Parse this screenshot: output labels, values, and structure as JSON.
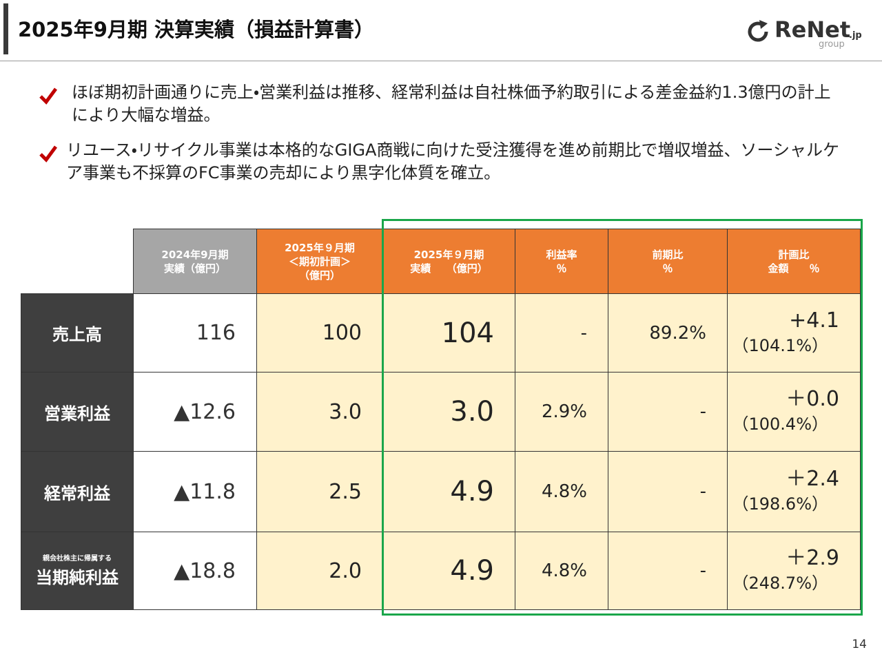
{
  "header": {
    "title": "2025年9月期 決算実績（損益計算書）",
    "logo": {
      "name": "ReNet",
      "suffix": ".jp",
      "tagline": "group"
    }
  },
  "bullets": [
    "ほぼ期初計画通りに売上・営業利益は推移、経常利益は自社株価予約取引による差金益約1.3億円の計上により大幅な増益。",
    "リユース・リサイクル事業は本格的なGIGA商戦に向けた受注獲得を進め前期比で増収増益、ソーシャルケア事業も不採算のFC事業の売却により黒字化体質を確立。"
  ],
  "table": {
    "columns": [
      [
        "2024年9月期",
        "実績（億円）"
      ],
      [
        "2025年９月期",
        "＜期初計画＞",
        "（億円）"
      ],
      [
        "2025年９月期",
        "実績　　（億円）"
      ],
      [
        "利益率",
        "％"
      ],
      [
        "前期比",
        "％"
      ],
      [
        "計画比",
        "金額　　％"
      ]
    ],
    "rows": [
      {
        "label": "売上高",
        "cells": [
          "116",
          "100",
          "104",
          "-",
          "89.2%",
          "+4.1",
          "（104.1%）"
        ]
      },
      {
        "label": "営業利益",
        "cells": [
          "▲12.6",
          "3.0",
          "3.0",
          "2.9%",
          "-",
          "＋0.0",
          "（100.4%）"
        ]
      },
      {
        "label": "経常利益",
        "cells": [
          "▲11.8",
          "2.5",
          "4.9",
          "4.8%",
          "-",
          "＋2.4",
          "（198.6%）"
        ]
      },
      {
        "label_note": "親会社株主に帰属する",
        "label": "当期純利益",
        "cells": [
          "▲18.8",
          "2.0",
          "4.9",
          "4.8%",
          "-",
          "＋2.9",
          "（248.7%）"
        ]
      }
    ]
  },
  "page_number": "14"
}
